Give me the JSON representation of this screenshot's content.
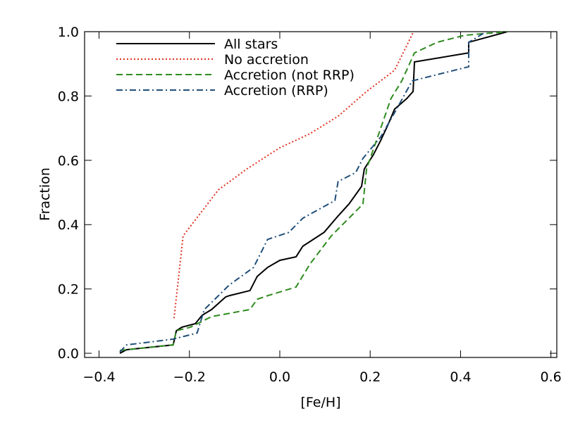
{
  "chart_data": {
    "type": "line",
    "xlabel": "[Fe/H]",
    "ylabel": "Fraction",
    "xlim": [
      -0.432,
      0.613
    ],
    "ylim": [
      -0.013,
      1.0
    ],
    "xticks": [
      {
        "value": -0.4,
        "label": "−0.4"
      },
      {
        "value": -0.2,
        "label": "−0.2"
      },
      {
        "value": 0,
        "label": "0.0"
      },
      0.2,
      0.4,
      0.6
    ],
    "yticks": [
      {
        "value": 0,
        "label": "0.0"
      },
      0.2,
      0.4,
      0.6,
      0.8,
      {
        "value": 1,
        "label": "1.0"
      }
    ],
    "legend": "upper left",
    "series": [
      {
        "name": "All stars",
        "color": "#000000",
        "style": "solid",
        "x": [
          -0.354,
          -0.339,
          -0.236,
          -0.229,
          -0.217,
          -0.187,
          -0.172,
          -0.151,
          -0.12,
          -0.112,
          -0.066,
          -0.05,
          -0.027,
          0.0,
          0.036,
          0.051,
          0.098,
          0.129,
          0.153,
          0.181,
          0.187,
          0.207,
          0.223,
          0.239,
          0.254,
          0.281,
          0.295,
          0.298,
          0.418,
          0.418,
          0.504
        ],
        "values": [
          0.0,
          0.011,
          0.026,
          0.07,
          0.081,
          0.092,
          0.118,
          0.136,
          0.175,
          0.179,
          0.195,
          0.239,
          0.267,
          0.289,
          0.3,
          0.333,
          0.376,
          0.427,
          0.464,
          0.519,
          0.573,
          0.617,
          0.661,
          0.709,
          0.759,
          0.792,
          0.814,
          0.906,
          0.934,
          0.967,
          1.0
        ]
      },
      {
        "name": "No accretion",
        "color": "#e0301e",
        "style": "dotted",
        "x": [
          -0.234,
          -0.214,
          -0.136,
          -0.073,
          0.0,
          0.067,
          0.129,
          0.192,
          0.254,
          0.296
        ],
        "values": [
          0.109,
          0.365,
          0.508,
          0.573,
          0.639,
          0.683,
          0.737,
          0.814,
          0.88,
          1.0
        ]
      },
      {
        "name": "Accretion (not RRP)",
        "color": "#2e8b1f",
        "style": "dashed",
        "x": [
          -0.354,
          -0.236,
          -0.229,
          -0.198,
          -0.151,
          -0.066,
          -0.05,
          -0.027,
          0.036,
          0.067,
          0.114,
          0.153,
          0.184,
          0.192,
          0.246,
          0.27,
          0.298,
          0.348,
          0.41,
          0.504
        ],
        "values": [
          0.009,
          0.026,
          0.07,
          0.081,
          0.114,
          0.136,
          0.168,
          0.179,
          0.206,
          0.278,
          0.365,
          0.42,
          0.464,
          0.573,
          0.792,
          0.847,
          0.934,
          0.967,
          0.989,
          1.0
        ]
      },
      {
        "name": "Accretion (RRP)",
        "color": "#1f4e79",
        "style": "dashdot",
        "x": [
          -0.354,
          -0.339,
          -0.236,
          -0.183,
          -0.167,
          -0.151,
          -0.112,
          -0.058,
          -0.027,
          0.02,
          0.051,
          0.122,
          0.129,
          0.168,
          0.184,
          0.223,
          0.254,
          0.293,
          0.418,
          0.418,
          0.457
        ],
        "values": [
          0.004,
          0.026,
          0.044,
          0.063,
          0.136,
          0.158,
          0.212,
          0.267,
          0.354,
          0.376,
          0.42,
          0.475,
          0.534,
          0.562,
          0.606,
          0.672,
          0.748,
          0.847,
          0.891,
          0.967,
          1.0
        ]
      }
    ]
  }
}
